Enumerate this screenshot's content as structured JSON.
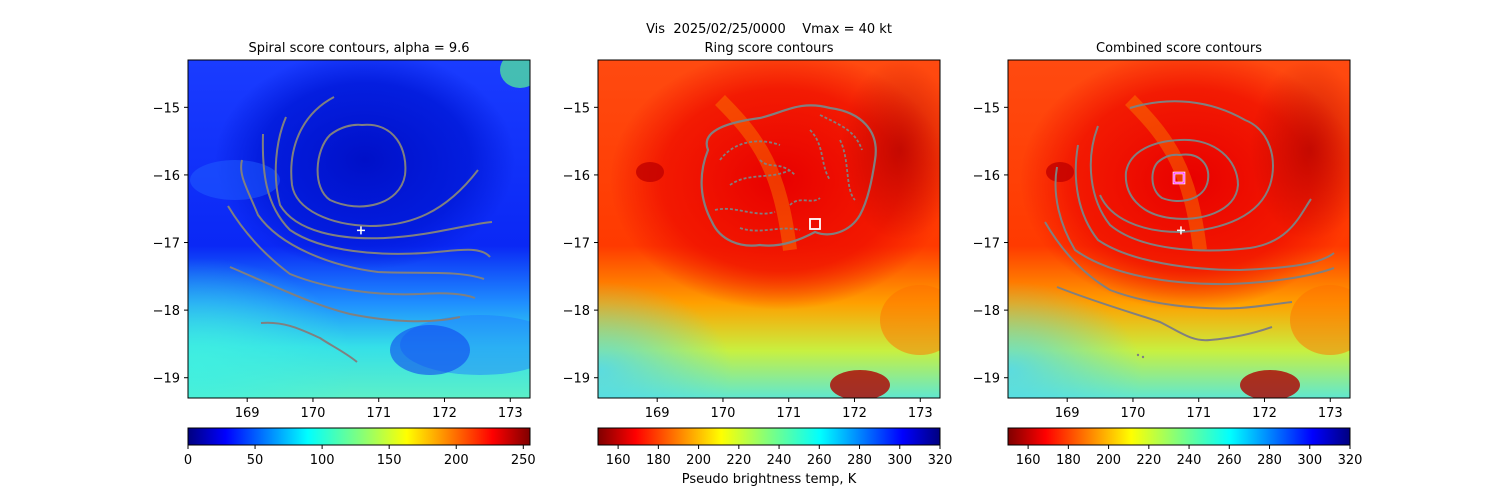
{
  "figure": {
    "suptitle": "Vis  2025/02/25/0000    Vmax = 40 kt",
    "colorbar_label": "Pseudo brightness temp, K"
  },
  "chart_data": [
    {
      "type": "heatmap",
      "title": "Spiral score contours, alpha =  9.6",
      "xlim": [
        168.1,
        173.3
      ],
      "ylim": [
        -19.3,
        -14.3
      ],
      "xticks": [
        169,
        170,
        171,
        172,
        173
      ],
      "xtick_labels": [
        "169",
        "170",
        "171",
        "172",
        "173"
      ],
      "yticks": [
        -15,
        -16,
        -17,
        -18,
        -19
      ],
      "ytick_labels": [
        "−15",
        "−16",
        "−17",
        "−18",
        "−19"
      ],
      "colormap": "jet",
      "colorbar": {
        "range": [
          0,
          255
        ],
        "ticks": [
          0,
          50,
          100,
          150,
          200,
          250
        ],
        "tick_labels": [
          "0",
          "50",
          "100",
          "150",
          "200",
          "250"
        ],
        "reversed": false
      },
      "markers": [
        {
          "kind": "plus",
          "x": 170.73,
          "y": -16.82,
          "color": "#ffffff"
        }
      ]
    },
    {
      "type": "heatmap",
      "title": "Ring score contours",
      "xlim": [
        168.1,
        173.3
      ],
      "ylim": [
        -19.3,
        -14.3
      ],
      "xticks": [
        169,
        170,
        171,
        172,
        173
      ],
      "xtick_labels": [
        "169",
        "170",
        "171",
        "172",
        "173"
      ],
      "yticks": [
        -15,
        -16,
        -17,
        -18,
        -19
      ],
      "ytick_labels": [
        "−15",
        "−16",
        "−17",
        "−18",
        "−19"
      ],
      "colormap": "jet_r",
      "colorbar": {
        "range": [
          150,
          320
        ],
        "ticks": [
          160,
          180,
          200,
          220,
          240,
          260,
          280,
          300,
          320
        ],
        "tick_labels": [
          "160",
          "180",
          "200",
          "220",
          "240",
          "260",
          "280",
          "300",
          "320"
        ],
        "reversed": true
      },
      "markers": [
        {
          "kind": "square",
          "x": 171.45,
          "y": -16.73,
          "color": "#ffffff"
        }
      ]
    },
    {
      "type": "heatmap",
      "title": "Combined score contours",
      "xlim": [
        168.1,
        173.3
      ],
      "ylim": [
        -19.3,
        -14.3
      ],
      "xticks": [
        169,
        170,
        171,
        172,
        173
      ],
      "xtick_labels": [
        "169",
        "170",
        "171",
        "172",
        "173"
      ],
      "yticks": [
        -15,
        -16,
        -17,
        -18,
        -19
      ],
      "ytick_labels": [
        "−15",
        "−16",
        "−17",
        "−18",
        "−19"
      ],
      "colormap": "jet_r",
      "colorbar": {
        "range": [
          150,
          320
        ],
        "ticks": [
          160,
          180,
          200,
          220,
          240,
          260,
          280,
          300,
          320
        ],
        "tick_labels": [
          "160",
          "180",
          "200",
          "220",
          "240",
          "260",
          "280",
          "300",
          "320"
        ],
        "reversed": true
      },
      "markers": [
        {
          "kind": "square",
          "x": 170.73,
          "y": -16.07,
          "color": "#ffffff"
        },
        {
          "kind": "plus",
          "x": 170.73,
          "y": -16.82,
          "color": "#ffffff"
        }
      ]
    }
  ]
}
